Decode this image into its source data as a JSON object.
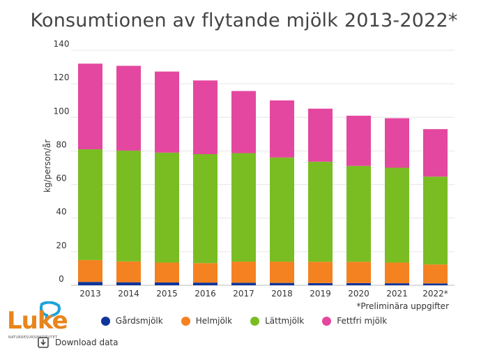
{
  "title": "Konsumtionen av flytande mjölk 2013-2022*",
  "note": "*Preliminära uppgifter",
  "logo": {
    "text": "Luke",
    "subtitle": "NATURRESURSINSTITUTET"
  },
  "download_label": "Download data",
  "icons": {
    "download": "download-icon",
    "logo": "luke-logo-bubble-icon"
  },
  "chart_data": {
    "type": "bar",
    "stacked": true,
    "title": "Konsumtionen av flytande mjölk 2013-2022*",
    "xlabel": "",
    "ylabel": "kg/person/år",
    "ylim": [
      0,
      140
    ],
    "yticks": [
      0,
      20,
      40,
      60,
      80,
      100,
      120,
      140
    ],
    "categories": [
      "2013",
      "2014",
      "2015",
      "2016",
      "2017",
      "2018",
      "2019",
      "2020",
      "2021",
      "2022*"
    ],
    "series": [
      {
        "name": "Gårdsmjölk",
        "color": "#10359b",
        "values": [
          2.0,
          1.8,
          1.7,
          1.6,
          1.5,
          1.4,
          1.3,
          1.3,
          1.2,
          1.1
        ]
      },
      {
        "name": "Helmjölk",
        "color": "#f58220",
        "values": [
          13.0,
          12.4,
          11.8,
          11.6,
          12.6,
          12.7,
          12.7,
          12.7,
          12.3,
          11.3
        ]
      },
      {
        "name": "Lättmjölk",
        "color": "#79bd23",
        "values": [
          66.0,
          66.0,
          65.5,
          64.9,
          64.6,
          62.0,
          59.6,
          57.1,
          56.5,
          52.3
        ]
      },
      {
        "name": "Fettfri mjölk",
        "color": "#e4479f",
        "values": [
          51.0,
          50.5,
          48.3,
          43.9,
          37.0,
          34.0,
          31.6,
          29.9,
          29.5,
          28.3
        ]
      }
    ],
    "grid": true,
    "legend": "bottom"
  }
}
